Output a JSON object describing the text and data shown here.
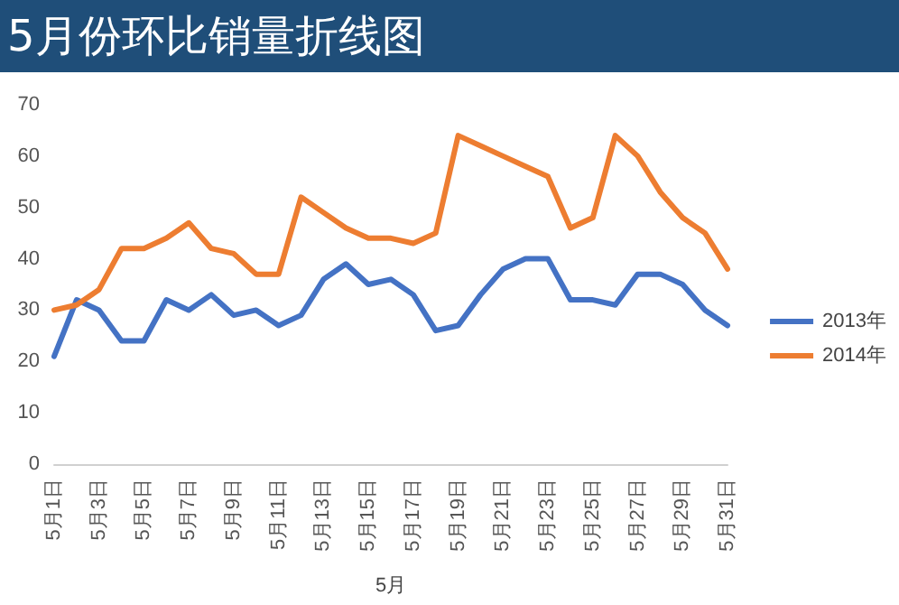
{
  "chart_data": {
    "type": "line",
    "title": "5月份环比销量折线图",
    "xlabel": "5月",
    "categories": [
      "5月1日",
      null,
      "5月3日",
      null,
      "5月5日",
      null,
      "5月7日",
      null,
      "5月9日",
      null,
      "5月11日",
      null,
      "5月13日",
      null,
      "5月15日",
      null,
      "5月17日",
      null,
      "5月19日",
      null,
      "5月21日",
      null,
      "5月23日",
      null,
      "5月25日",
      null,
      "5月27日",
      null,
      "5月29日",
      null,
      "5月31日"
    ],
    "series": [
      {
        "name": "2013年",
        "color": "#4472c4",
        "values": [
          21,
          32,
          30,
          24,
          24,
          32,
          30,
          33,
          29,
          30,
          27,
          29,
          36,
          39,
          35,
          36,
          33,
          26,
          27,
          33,
          38,
          40,
          40,
          32,
          32,
          31,
          37,
          37,
          35,
          30,
          27
        ]
      },
      {
        "name": "2014年",
        "color": "#ed7d31",
        "values": [
          30,
          31,
          34,
          42,
          42,
          44,
          47,
          42,
          41,
          37,
          37,
          52,
          49,
          46,
          44,
          44,
          43,
          45,
          64,
          62,
          60,
          58,
          56,
          46,
          48,
          64,
          60,
          53,
          48,
          45,
          38
        ]
      }
    ],
    "ylim": [
      0,
      70
    ],
    "yticks": [
      0,
      10,
      20,
      30,
      40,
      50,
      60,
      70
    ],
    "grid": false,
    "legend": "right",
    "marker": "none",
    "line_style": "solid"
  }
}
